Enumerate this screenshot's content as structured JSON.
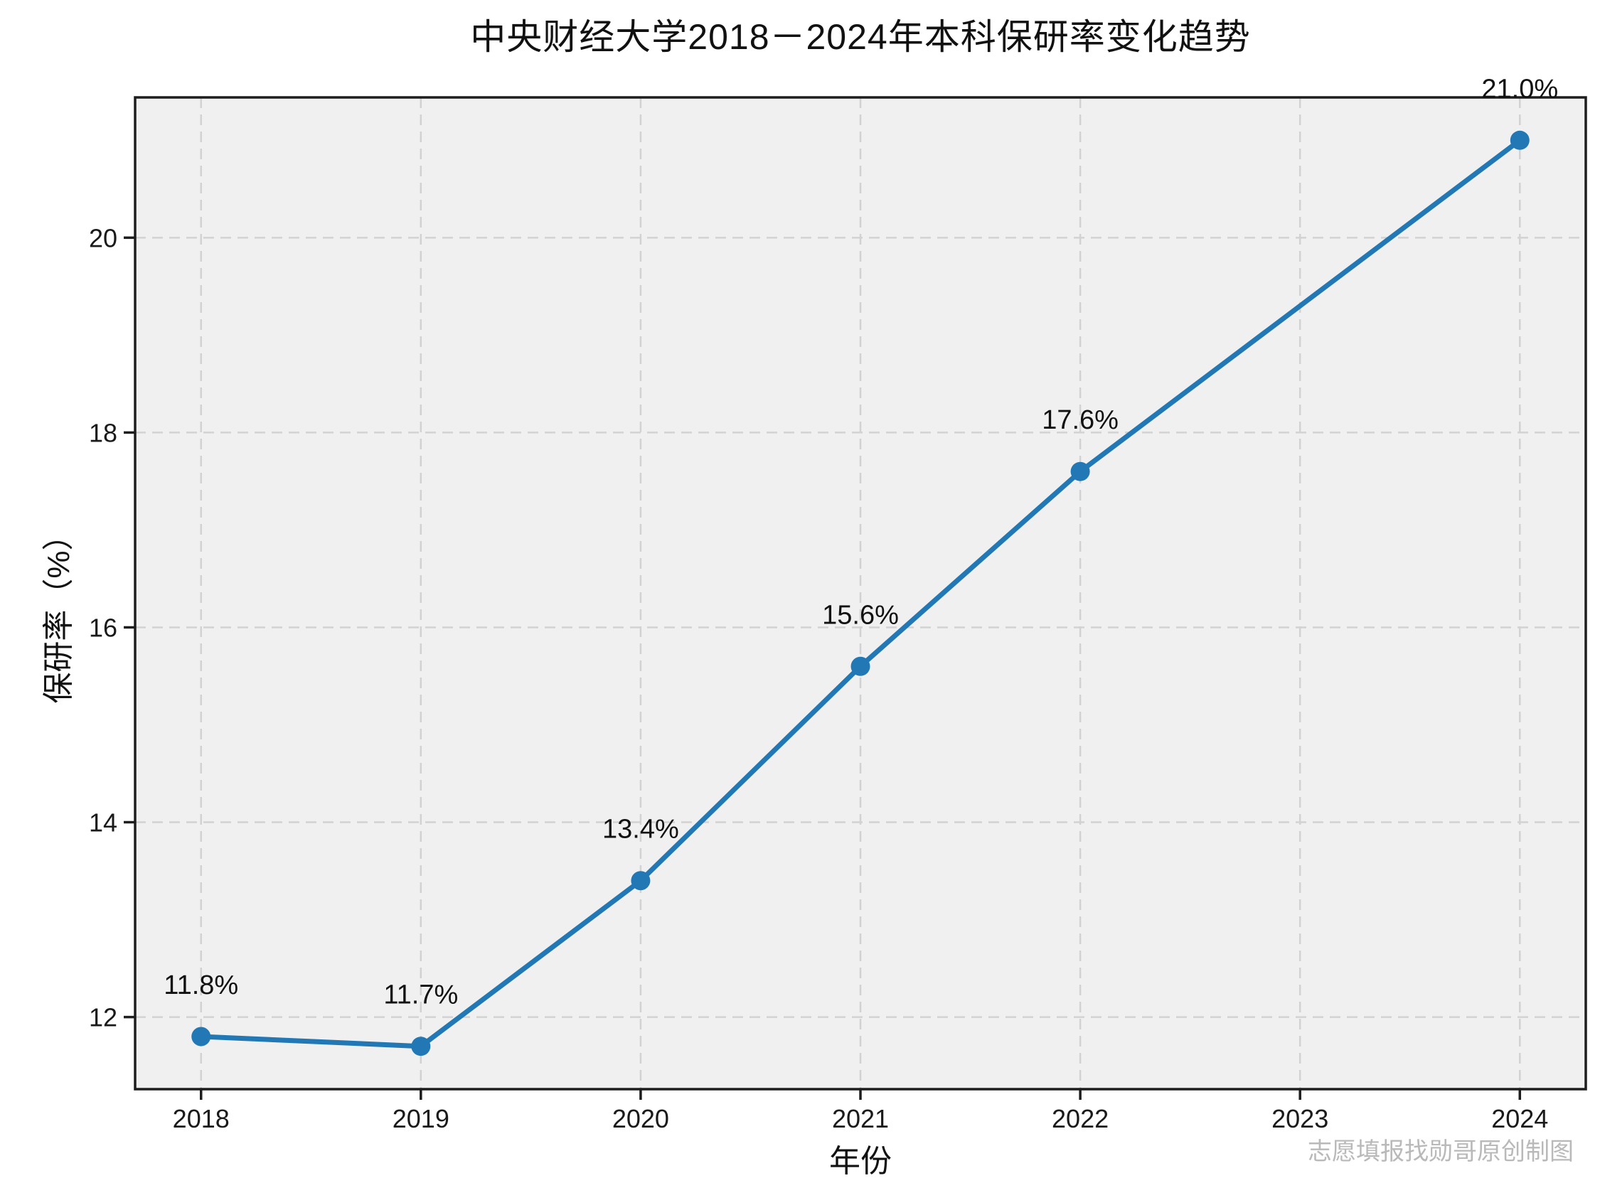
{
  "chart_data": {
    "type": "line",
    "title": "中央财经大学2018－2024年本科保研率变化趋势",
    "xlabel": "年份",
    "ylabel": "保研率（%）",
    "x": [
      2018,
      2019,
      2020,
      2021,
      2022,
      2024
    ],
    "values": [
      11.8,
      11.7,
      13.4,
      15.6,
      17.6,
      21.0
    ],
    "point_labels": [
      "11.8%",
      "11.7%",
      "13.4%",
      "15.6%",
      "17.6%",
      "21.0%"
    ],
    "xticks": [
      "2018",
      "2019",
      "2020",
      "2021",
      "2022",
      "2023",
      "2024"
    ],
    "yticks": [
      "12",
      "14",
      "16",
      "18",
      "20"
    ],
    "xlim": [
      2017.7,
      2024.3
    ],
    "ylim": [
      11.26,
      21.44
    ],
    "grid": true,
    "grid_style": "dashed",
    "legend_position": "none",
    "marker": "circle",
    "colors": {
      "line": "#2178b5",
      "plot_background": "#f0f0f0",
      "grid": "#d2d2d2",
      "axis": "#1d1d1d",
      "tick_text": "#1a1a1a",
      "label_text": "#111111",
      "watermark": "#b9b9b9"
    },
    "watermark": "志愿填报找勋哥原创制图"
  }
}
